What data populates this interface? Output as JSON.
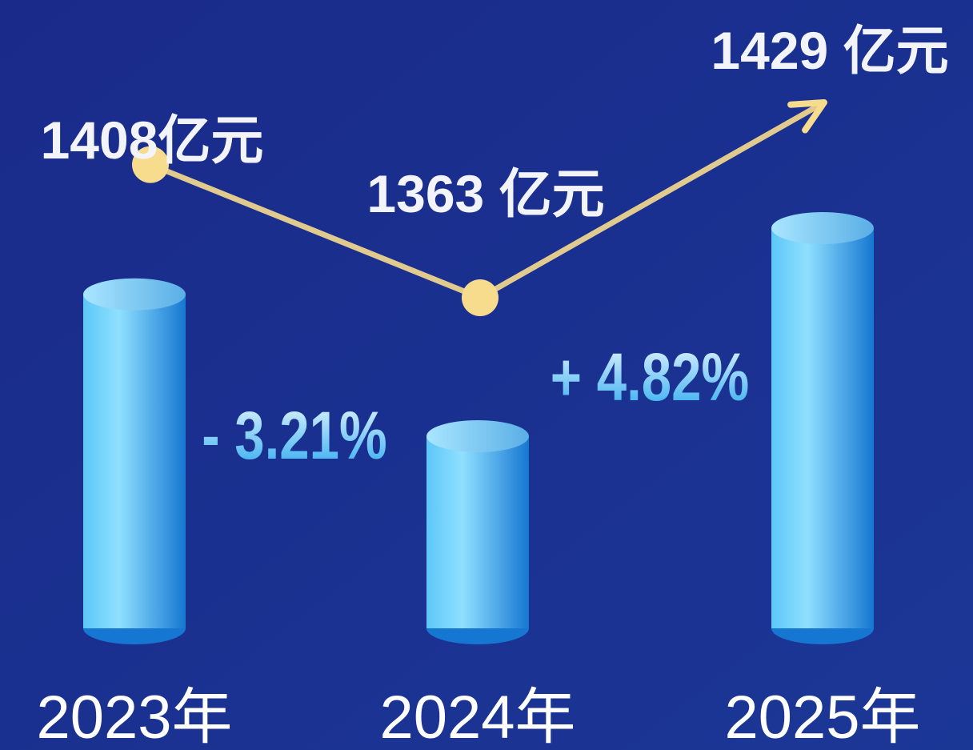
{
  "chart_data": {
    "type": "bar",
    "categories": [
      "2023年",
      "2024年",
      "2025年"
    ],
    "values": [
      1408,
      1363,
      1429
    ],
    "value_labels": [
      "1408亿元",
      "1363 亿元",
      "1429 亿元"
    ],
    "annotations": [
      {
        "text": "- 3.21%"
      },
      {
        "text": "+ 4.82%"
      }
    ],
    "color": "#3aaef0",
    "line_color": "#f7dc8e"
  }
}
